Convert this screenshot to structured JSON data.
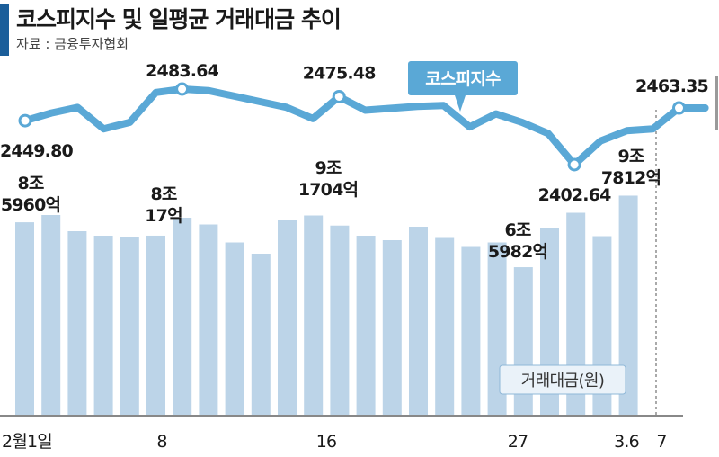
{
  "header": {
    "title": "코스피지수 및 일평균 거래대금 추이",
    "source": "자료 : 금융투자협회"
  },
  "colors": {
    "line": "#5aa8d6",
    "bar": "#bcd4e8",
    "accent": "#1b5e9a"
  },
  "chart_data": {
    "type": "bar",
    "categories": [
      "2월1일",
      "",
      "",
      "",
      "",
      "",
      "8",
      "",
      "",
      "",
      "",
      "",
      "16",
      "",
      "",
      "",
      "",
      "",
      "",
      "",
      "",
      "27",
      "",
      "",
      "",
      "",
      "3.6",
      "7"
    ],
    "series": [
      {
        "name": "코스피지수",
        "type": "line",
        "values": [
          2449.8,
          2458,
          2464,
          2441,
          2448,
          2480,
          2483.64,
          2482,
          2476,
          2470,
          2464,
          2452,
          2475.48,
          2461,
          2463,
          2465,
          2466,
          2443,
          2457,
          2448,
          2436,
          2402.64,
          2428,
          2439,
          2441,
          2463.35,
          2463.35,
          null
        ]
      },
      {
        "name": "거래대금(원)",
        "type": "bar",
        "values": [
          8.596,
          8.92,
          8.2,
          8.0,
          7.95,
          8.0017,
          8.8,
          8.5,
          7.7,
          7.2,
          8.7,
          8.9,
          8.45,
          8.0,
          7.8,
          8.4,
          7.9,
          7.5,
          7.7,
          6.5982,
          8.35,
          9.02,
          7.98,
          9.7812,
          null,
          null,
          null,
          null
        ]
      }
    ],
    "line_labels": {
      "0": "2449.80",
      "6": "2483.64",
      "12": "2475.48",
      "21": "2402.64",
      "25": "2463.35"
    },
    "bar_labels": [
      {
        "line1": "8조",
        "line2": "5960억"
      },
      {
        "line1": "8조",
        "line2": "17억"
      },
      {
        "line1": "9조",
        "line2": "1704억"
      },
      {
        "line1": "6조",
        "line2": "5982억"
      },
      {
        "line1": "9조",
        "line2": "7812억"
      }
    ],
    "line_legend": "코스피지수",
    "bar_legend": "거래대금(원)",
    "x_ticks": [
      "2월1일",
      "8",
      "16",
      "27",
      "3.6",
      "7"
    ]
  }
}
